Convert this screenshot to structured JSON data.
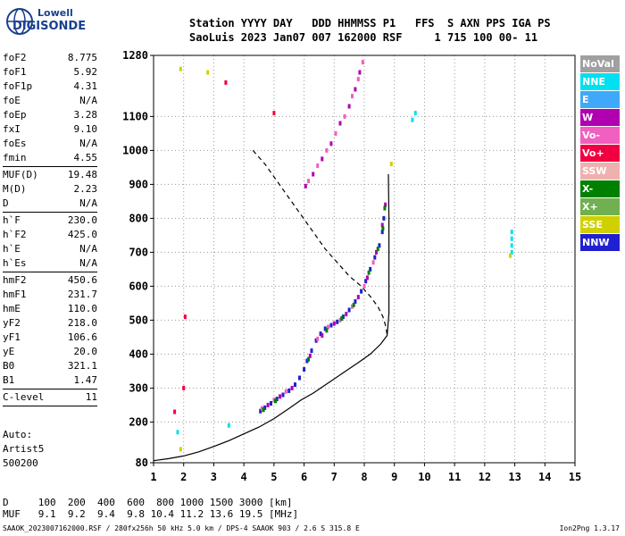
{
  "logo": {
    "line1": "Lowell",
    "line2": "DIGISONDE"
  },
  "header": {
    "line1": "Station YYYY DAY   DDD HHMMSS P1   FFS  S AXN PPS IGA PS",
    "line2": "SaoLuis 2023 Jan07 007 162000 RSF     1 715 100 00- 11"
  },
  "params": {
    "group1": [
      {
        "label": "foF2",
        "value": "8.775"
      },
      {
        "label": "foF1",
        "value": "5.92"
      },
      {
        "label": "foF1p",
        "value": "4.31"
      },
      {
        "label": "foE",
        "value": "N/A"
      },
      {
        "label": "foEp",
        "value": "3.28"
      },
      {
        "label": "fxI",
        "value": "9.10"
      },
      {
        "label": "foEs",
        "value": "N/A"
      },
      {
        "label": "fmin",
        "value": "4.55"
      }
    ],
    "group2": [
      {
        "label": "MUF(D)",
        "value": "19.48"
      },
      {
        "label": "M(D)",
        "value": "2.23"
      },
      {
        "label": "D",
        "value": "N/A"
      }
    ],
    "group3": [
      {
        "label": "h`F",
        "value": "230.0"
      },
      {
        "label": "h`F2",
        "value": "425.0"
      },
      {
        "label": "h`E",
        "value": "N/A"
      },
      {
        "label": "h`Es",
        "value": "N/A"
      }
    ],
    "group4": [
      {
        "label": "hmF2",
        "value": "450.6"
      },
      {
        "label": "hmF1",
        "value": "231.7"
      },
      {
        "label": "hmE",
        "value": "110.0"
      },
      {
        "label": "yF2",
        "value": "218.0"
      },
      {
        "label": "yF1",
        "value": "106.6"
      },
      {
        "label": "yE",
        "value": "20.0"
      },
      {
        "label": "B0",
        "value": "321.1"
      },
      {
        "label": "B1",
        "value": "1.47"
      }
    ],
    "group5": [
      {
        "label": "C-level",
        "value": "11"
      }
    ]
  },
  "auto": {
    "line1": "Auto:",
    "line2": "Artist5",
    "line3": "500200"
  },
  "muf_table": {
    "d_line": "D     100  200  400  600  800 1000 1500 3000 [km]",
    "muf_line": "MUF   9.1  9.2  9.4  9.8 10.4 11.2 13.6 19.5 [MHz]"
  },
  "footer": {
    "left": "SAAOK_2023007162000.RSF / 280fx256h 50 kHz 5.0 km / DPS-4 SAAOK 903 / 2.6 S 315.8 E",
    "right": "Ion2Png 1.3.17"
  },
  "legend": [
    {
      "label": "NoVal",
      "color": "#a0a0a0"
    },
    {
      "label": "NNE",
      "color": "#00e0f0"
    },
    {
      "label": "E",
      "color": "#40a8f8"
    },
    {
      "label": "W",
      "color": "#b000b0"
    },
    {
      "label": "Vo-",
      "color": "#f060c0"
    },
    {
      "label": "Vo+",
      "color": "#f00040"
    },
    {
      "label": "SSW",
      "color": "#f0b0b0"
    },
    {
      "label": "X-",
      "color": "#008000"
    },
    {
      "label": "X+",
      "color": "#70b050"
    },
    {
      "label": "SSE",
      "color": "#d0d000"
    },
    {
      "label": "NNW",
      "color": "#2020d0"
    }
  ],
  "chart_data": {
    "type": "scatter",
    "title": "",
    "xlabel": "",
    "ylabel": "",
    "xlim": [
      1,
      15
    ],
    "ylim": [
      80,
      1280
    ],
    "xticks": [
      "1",
      "2",
      "3",
      "4",
      "5",
      "6",
      "7",
      "8",
      "9",
      "10",
      "11",
      "12",
      "13",
      "14",
      "15"
    ],
    "yticks": [
      {
        "value": 80,
        "label": "80"
      },
      {
        "value": 200,
        "label": "200"
      },
      {
        "value": 300,
        "label": "300"
      },
      {
        "value": 400,
        "label": "400"
      },
      {
        "value": 500,
        "label": "500"
      },
      {
        "value": 600,
        "label": "600"
      },
      {
        "value": 700,
        "label": "700"
      },
      {
        "value": 800,
        "label": "800"
      },
      {
        "value": 900,
        "label": "900"
      },
      {
        "value": 1000,
        "label": "1000"
      },
      {
        "value": 1100,
        "label": "1100"
      },
      {
        "value": 1280,
        "label": "1280"
      }
    ],
    "series": [
      {
        "color": "#2020d0",
        "points": [
          [
            4.55,
            232
          ],
          [
            4.7,
            242
          ],
          [
            4.9,
            255
          ],
          [
            5.1,
            268
          ],
          [
            5.3,
            280
          ],
          [
            5.5,
            292
          ],
          [
            5.7,
            310
          ],
          [
            5.85,
            330
          ],
          [
            6.0,
            355
          ],
          [
            6.1,
            380
          ],
          [
            6.25,
            410
          ],
          [
            6.4,
            440
          ],
          [
            6.55,
            460
          ],
          [
            6.7,
            475
          ],
          [
            6.9,
            485
          ],
          [
            7.1,
            495
          ],
          [
            7.3,
            510
          ],
          [
            7.5,
            530
          ],
          [
            7.7,
            555
          ],
          [
            7.9,
            585
          ],
          [
            8.05,
            615
          ],
          [
            8.2,
            650
          ],
          [
            8.35,
            685
          ],
          [
            8.5,
            720
          ],
          [
            8.6,
            760
          ],
          [
            8.65,
            800
          ]
        ]
      },
      {
        "color": "#b000b0",
        "points": [
          [
            4.8,
            250
          ],
          [
            5.2,
            275
          ],
          [
            5.6,
            300
          ],
          [
            6.2,
            395
          ],
          [
            6.6,
            455
          ],
          [
            7.0,
            490
          ],
          [
            7.4,
            518
          ],
          [
            7.8,
            568
          ],
          [
            8.1,
            625
          ],
          [
            8.4,
            700
          ],
          [
            8.6,
            780
          ],
          [
            8.7,
            840
          ],
          [
            6.05,
            895
          ],
          [
            6.3,
            930
          ],
          [
            6.6,
            975
          ],
          [
            6.9,
            1020
          ],
          [
            7.2,
            1080
          ],
          [
            7.5,
            1130
          ],
          [
            7.7,
            1180
          ],
          [
            7.85,
            1230
          ]
        ]
      },
      {
        "color": "#f060c0",
        "points": [
          [
            4.6,
            240
          ],
          [
            5.0,
            265
          ],
          [
            5.4,
            290
          ],
          [
            6.45,
            445
          ],
          [
            6.8,
            480
          ],
          [
            7.2,
            500
          ],
          [
            7.6,
            540
          ],
          [
            8.0,
            600
          ],
          [
            8.3,
            670
          ],
          [
            6.15,
            910
          ],
          [
            6.45,
            955
          ],
          [
            6.75,
            1000
          ],
          [
            7.05,
            1050
          ],
          [
            7.35,
            1100
          ],
          [
            7.6,
            1160
          ],
          [
            7.8,
            1210
          ],
          [
            7.95,
            1260
          ]
        ]
      },
      {
        "color": "#008000",
        "points": [
          [
            4.65,
            236
          ],
          [
            5.05,
            262
          ],
          [
            6.15,
            385
          ],
          [
            6.75,
            470
          ],
          [
            7.25,
            505
          ],
          [
            7.65,
            545
          ],
          [
            8.15,
            640
          ],
          [
            8.45,
            710
          ],
          [
            8.62,
            770
          ],
          [
            8.68,
            830
          ]
        ]
      },
      {
        "color": "#00e0f0",
        "points": [
          [
            1.8,
            170
          ],
          [
            3.5,
            190
          ],
          [
            12.9,
            760
          ],
          [
            12.9,
            740
          ],
          [
            12.9,
            720
          ],
          [
            12.9,
            700
          ],
          [
            9.7,
            1110
          ],
          [
            9.6,
            1090
          ]
        ]
      },
      {
        "color": "#d0d000",
        "points": [
          [
            2.8,
            1230
          ],
          [
            1.9,
            1240
          ],
          [
            8.9,
            960
          ],
          [
            12.85,
            690
          ],
          [
            1.9,
            120
          ]
        ]
      },
      {
        "color": "#f00040",
        "points": [
          [
            2.0,
            300
          ],
          [
            1.7,
            230
          ],
          [
            2.05,
            510
          ],
          [
            3.4,
            1200
          ],
          [
            5.0,
            1110
          ]
        ]
      }
    ],
    "curves": [
      {
        "name": "",
        "style": "dashed",
        "points": [
          [
            4.3,
            1000
          ],
          [
            4.7,
            960
          ],
          [
            5.1,
            910
          ],
          [
            5.5,
            860
          ],
          [
            5.9,
            810
          ],
          [
            6.3,
            760
          ],
          [
            6.7,
            710
          ],
          [
            7.1,
            670
          ],
          [
            7.5,
            630
          ],
          [
            7.9,
            600
          ],
          [
            8.2,
            570
          ],
          [
            8.45,
            540
          ],
          [
            8.62,
            510
          ],
          [
            8.72,
            480
          ],
          [
            8.76,
            455
          ]
        ]
      },
      {
        "name": "",
        "style": "solid",
        "points": [
          [
            1.0,
            86
          ],
          [
            1.5,
            92
          ],
          [
            2.0,
            100
          ],
          [
            2.5,
            112
          ],
          [
            3.0,
            128
          ],
          [
            3.5,
            145
          ],
          [
            4.0,
            165
          ],
          [
            4.5,
            185
          ],
          [
            5.0,
            210
          ],
          [
            5.5,
            240
          ],
          [
            5.9,
            265
          ],
          [
            6.3,
            285
          ],
          [
            6.8,
            315
          ],
          [
            7.3,
            345
          ],
          [
            7.8,
            375
          ],
          [
            8.2,
            400
          ],
          [
            8.55,
            430
          ],
          [
            8.76,
            455
          ],
          [
            8.82,
            520
          ],
          [
            8.82,
            600
          ],
          [
            8.82,
            700
          ],
          [
            8.82,
            800
          ],
          [
            8.8,
            930
          ]
        ]
      }
    ],
    "grid": true,
    "grid_style": "dotted"
  }
}
